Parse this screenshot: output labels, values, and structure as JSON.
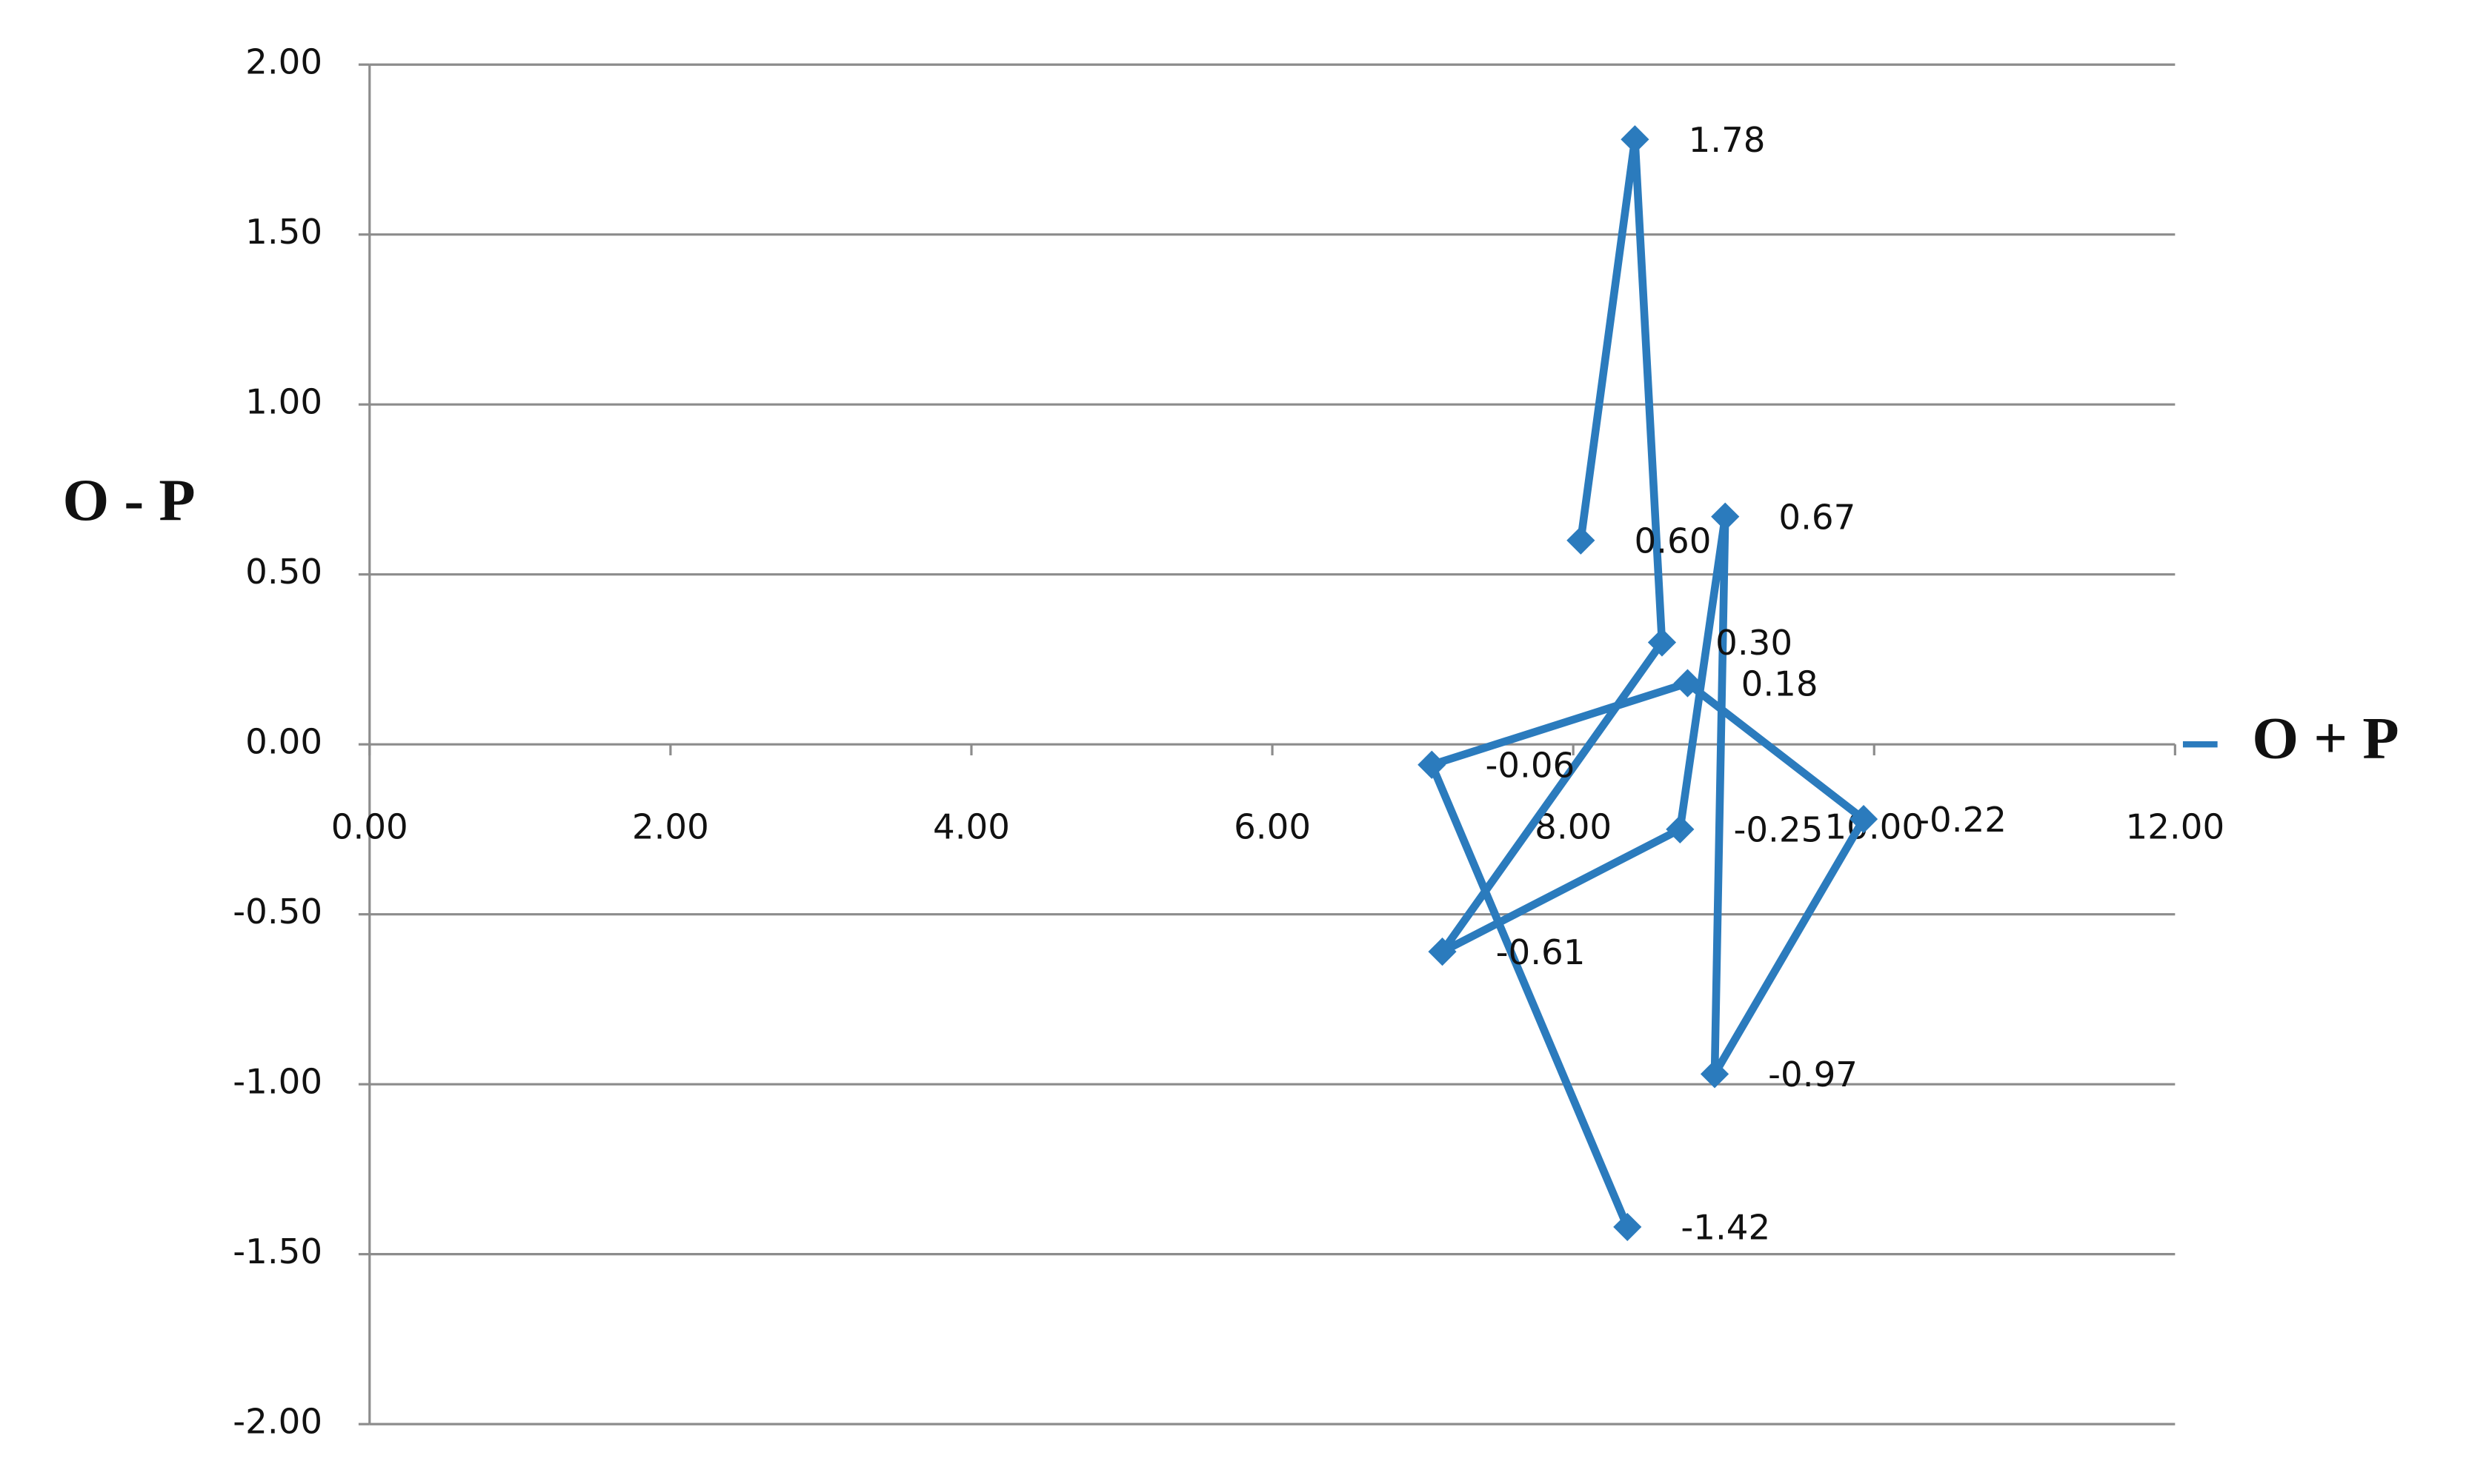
{
  "chart_data": {
    "type": "scatter-line",
    "y_label": "O - P",
    "series": [
      {
        "name": "O + P",
        "color": "#2b7bbd",
        "x": [
          8.05,
          8.41,
          8.59,
          7.13,
          8.71,
          9.01,
          8.94,
          9.93,
          8.76,
          7.06,
          8.36
        ],
        "values": [
          0.6,
          1.78,
          0.3,
          -0.61,
          -0.25,
          0.67,
          -0.97,
          -0.22,
          0.18,
          -0.06,
          -1.42
        ],
        "value_labels": [
          "0.60",
          "1.78",
          "0.30",
          "-0.61",
          "-0.25",
          "0.67",
          "-0.97",
          "-0.22",
          "0.18",
          "-0.06",
          "-1.42"
        ]
      }
    ],
    "xlim": [
      0,
      12
    ],
    "ylim": [
      -2,
      2
    ],
    "xticks": [
      {
        "value": 0,
        "label": "0.00"
      },
      {
        "value": 2,
        "label": "2.00"
      },
      {
        "value": 4,
        "label": "4.00"
      },
      {
        "value": 6,
        "label": "6.00"
      },
      {
        "value": 8,
        "label": "8.00"
      },
      {
        "value": 10,
        "label": "10.00"
      },
      {
        "value": 12,
        "label": "12.00"
      }
    ],
    "yticks": [
      {
        "value": 2,
        "label": "2.00"
      },
      {
        "value": 1.5,
        "label": "1.50"
      },
      {
        "value": 1,
        "label": "1.00"
      },
      {
        "value": 0.5,
        "label": "0.50"
      },
      {
        "value": 0,
        "label": "0.00"
      },
      {
        "value": -0.5,
        "label": "-0.50"
      },
      {
        "value": -1,
        "label": "-1.00"
      },
      {
        "value": -1.5,
        "label": "-1.50"
      },
      {
        "value": -2,
        "label": "-2.00"
      }
    ],
    "grid": true,
    "legend": "right"
  }
}
